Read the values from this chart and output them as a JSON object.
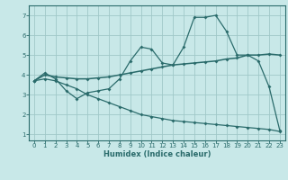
{
  "xlabel": "Humidex (Indice chaleur)",
  "bg_color": "#c8e8e8",
  "grid_color": "#a0c8c8",
  "line_color": "#2a6b6b",
  "xlim": [
    -0.5,
    23.5
  ],
  "ylim": [
    0.7,
    7.5
  ],
  "xticks": [
    0,
    1,
    2,
    3,
    4,
    5,
    6,
    7,
    8,
    9,
    10,
    11,
    12,
    13,
    14,
    15,
    16,
    17,
    18,
    19,
    20,
    21,
    22,
    23
  ],
  "yticks": [
    1,
    2,
    3,
    4,
    5,
    6,
    7
  ],
  "line1_x": [
    0,
    1,
    2,
    3,
    4,
    5,
    6,
    7,
    8,
    9,
    10,
    11,
    12,
    13,
    14,
    15,
    16,
    17,
    18,
    19,
    20,
    21,
    22,
    23
  ],
  "line1_y": [
    3.7,
    4.1,
    3.8,
    3.2,
    2.8,
    3.1,
    3.2,
    3.3,
    3.8,
    4.7,
    5.4,
    5.3,
    4.6,
    4.5,
    5.4,
    6.9,
    6.9,
    7.0,
    6.2,
    5.0,
    5.0,
    4.7,
    3.4,
    1.2
  ],
  "line2_x": [
    0,
    1,
    2,
    3,
    4,
    5,
    6,
    7,
    8,
    9,
    10,
    11,
    12,
    13,
    14,
    15,
    16,
    17,
    18,
    19,
    20,
    21,
    22,
    23
  ],
  "line2_y": [
    3.7,
    4.0,
    3.9,
    3.85,
    3.8,
    3.8,
    3.85,
    3.9,
    4.0,
    4.1,
    4.2,
    4.3,
    4.4,
    4.5,
    4.55,
    4.6,
    4.65,
    4.7,
    4.8,
    4.85,
    5.0,
    5.0,
    5.05,
    5.0
  ],
  "line3_x": [
    0,
    1,
    2,
    3,
    4,
    5,
    6,
    7,
    8,
    9,
    10,
    11,
    12,
    13,
    14,
    15,
    16,
    17,
    18,
    19,
    20,
    21,
    22,
    23
  ],
  "line3_y": [
    3.7,
    3.8,
    3.7,
    3.5,
    3.3,
    3.0,
    2.8,
    2.6,
    2.4,
    2.2,
    2.0,
    1.9,
    1.8,
    1.7,
    1.65,
    1.6,
    1.55,
    1.5,
    1.45,
    1.4,
    1.35,
    1.3,
    1.25,
    1.15
  ]
}
